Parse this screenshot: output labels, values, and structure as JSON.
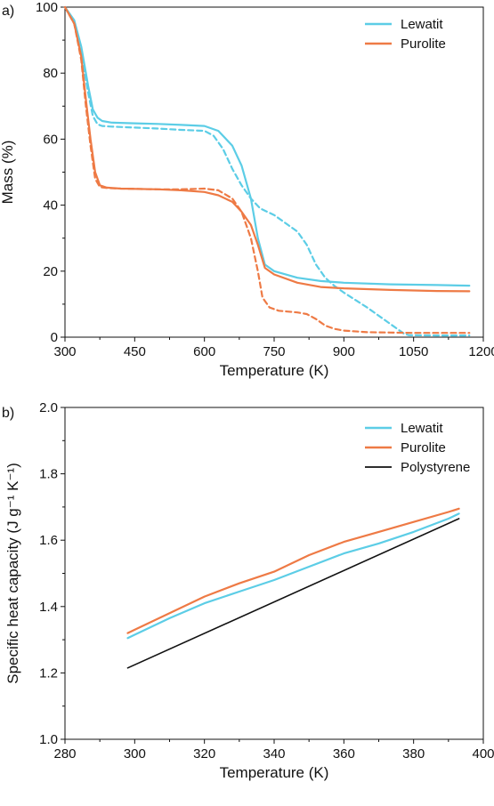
{
  "colors": {
    "lewatit": "#5ccde6",
    "purolite": "#ee7a45",
    "polystyrene": "#111111"
  },
  "chart_data": [
    {
      "type": "line",
      "panel_label": "a)",
      "xlabel": "Temperature (K)",
      "ylabel": "Mass (%)",
      "xlim": [
        300,
        1200
      ],
      "ylim": [
        0,
        100
      ],
      "xticks": [
        "300",
        "450",
        "600",
        "750",
        "900",
        "1050",
        "1200"
      ],
      "yticks": [
        "0",
        "20",
        "40",
        "60",
        "80",
        "100"
      ],
      "legend_position": "top-right",
      "legend": [
        "Lewatit",
        "Purolite"
      ],
      "series": [
        {
          "name": "Lewatit",
          "color_key": "lewatit",
          "dash": false,
          "x": [
            300,
            320,
            335,
            350,
            360,
            370,
            380,
            400,
            450,
            500,
            550,
            600,
            630,
            660,
            680,
            700,
            715,
            730,
            750,
            800,
            850,
            900,
            1000,
            1100,
            1170
          ],
          "y": [
            100,
            96,
            88,
            76,
            69,
            66.5,
            65.5,
            65,
            64.8,
            64.6,
            64.3,
            64,
            62.5,
            58,
            52,
            42,
            30,
            22,
            20,
            18,
            17,
            16.5,
            16,
            15.8,
            15.6
          ]
        },
        {
          "name": "Lewatit",
          "color_key": "lewatit",
          "dash": true,
          "x": [
            300,
            320,
            335,
            350,
            360,
            370,
            380,
            400,
            450,
            500,
            550,
            600,
            620,
            640,
            660,
            680,
            700,
            720,
            750,
            780,
            800,
            820,
            840,
            860,
            880,
            900,
            950,
            1000,
            1030,
            1040,
            1100,
            1170
          ],
          "y": [
            100,
            95,
            86,
            74,
            67,
            64.5,
            64,
            63.8,
            63.5,
            63.2,
            62.8,
            62.5,
            61,
            57,
            51,
            46,
            42,
            39,
            37,
            34,
            32,
            28,
            22,
            18,
            15.5,
            13.5,
            9,
            4,
            1,
            0.6,
            0.5,
            0.5
          ]
        },
        {
          "name": "Purolite",
          "color_key": "purolite",
          "dash": false,
          "x": [
            300,
            320,
            335,
            345,
            355,
            365,
            375,
            390,
            420,
            500,
            550,
            600,
            630,
            660,
            680,
            700,
            715,
            730,
            750,
            800,
            850,
            900,
            1000,
            1100,
            1170
          ],
          "y": [
            100,
            95,
            85,
            72,
            60,
            50,
            46,
            45.3,
            45,
            44.8,
            44.5,
            44,
            43,
            41,
            38,
            34,
            28,
            21,
            19,
            16.5,
            15.2,
            14.8,
            14.3,
            14,
            13.9
          ]
        },
        {
          "name": "Purolite",
          "color_key": "purolite",
          "dash": true,
          "x": [
            300,
            320,
            335,
            345,
            355,
            365,
            375,
            390,
            420,
            500,
            550,
            600,
            630,
            660,
            680,
            700,
            715,
            725,
            740,
            760,
            800,
            820,
            840,
            860,
            880,
            900,
            950,
            1000,
            1050,
            1100,
            1170
          ],
          "y": [
            100,
            95,
            84,
            70,
            58,
            48,
            45.5,
            45.2,
            45,
            44.8,
            44.8,
            45,
            44.5,
            42,
            38,
            30,
            20,
            12,
            9,
            8,
            7.5,
            7,
            5.5,
            3.5,
            2.5,
            2,
            1.5,
            1.4,
            1.3,
            1.3,
            1.3
          ]
        }
      ]
    },
    {
      "type": "line",
      "panel_label": "b)",
      "xlabel": "Temperature (K)",
      "ylabel": "Specific heat capacity (J g⁻¹ K⁻¹)",
      "xlim": [
        280,
        400
      ],
      "ylim": [
        1.0,
        2.0
      ],
      "xticks": [
        "280",
        "300",
        "320",
        "340",
        "360",
        "380",
        "400"
      ],
      "yticks": [
        "1.0",
        "1.2",
        "1.4",
        "1.6",
        "1.8",
        "2.0"
      ],
      "legend_position": "top-right",
      "legend": [
        "Lewatit",
        "Purolite",
        "Polystyrene"
      ],
      "series": [
        {
          "name": "Lewatit",
          "color_key": "lewatit",
          "x": [
            298,
            300,
            310,
            320,
            330,
            340,
            350,
            360,
            370,
            380,
            390,
            393
          ],
          "y": [
            1.305,
            1.315,
            1.365,
            1.41,
            1.445,
            1.48,
            1.52,
            1.56,
            1.59,
            1.625,
            1.665,
            1.68
          ]
        },
        {
          "name": "Purolite",
          "color_key": "purolite",
          "x": [
            298,
            300,
            310,
            320,
            330,
            340,
            350,
            360,
            370,
            380,
            390,
            393
          ],
          "y": [
            1.32,
            1.33,
            1.38,
            1.43,
            1.47,
            1.505,
            1.555,
            1.595,
            1.625,
            1.655,
            1.685,
            1.695
          ]
        },
        {
          "name": "Polystyrene",
          "color_key": "polystyrene",
          "x": [
            298,
            393
          ],
          "y": [
            1.215,
            1.665
          ]
        }
      ]
    }
  ]
}
